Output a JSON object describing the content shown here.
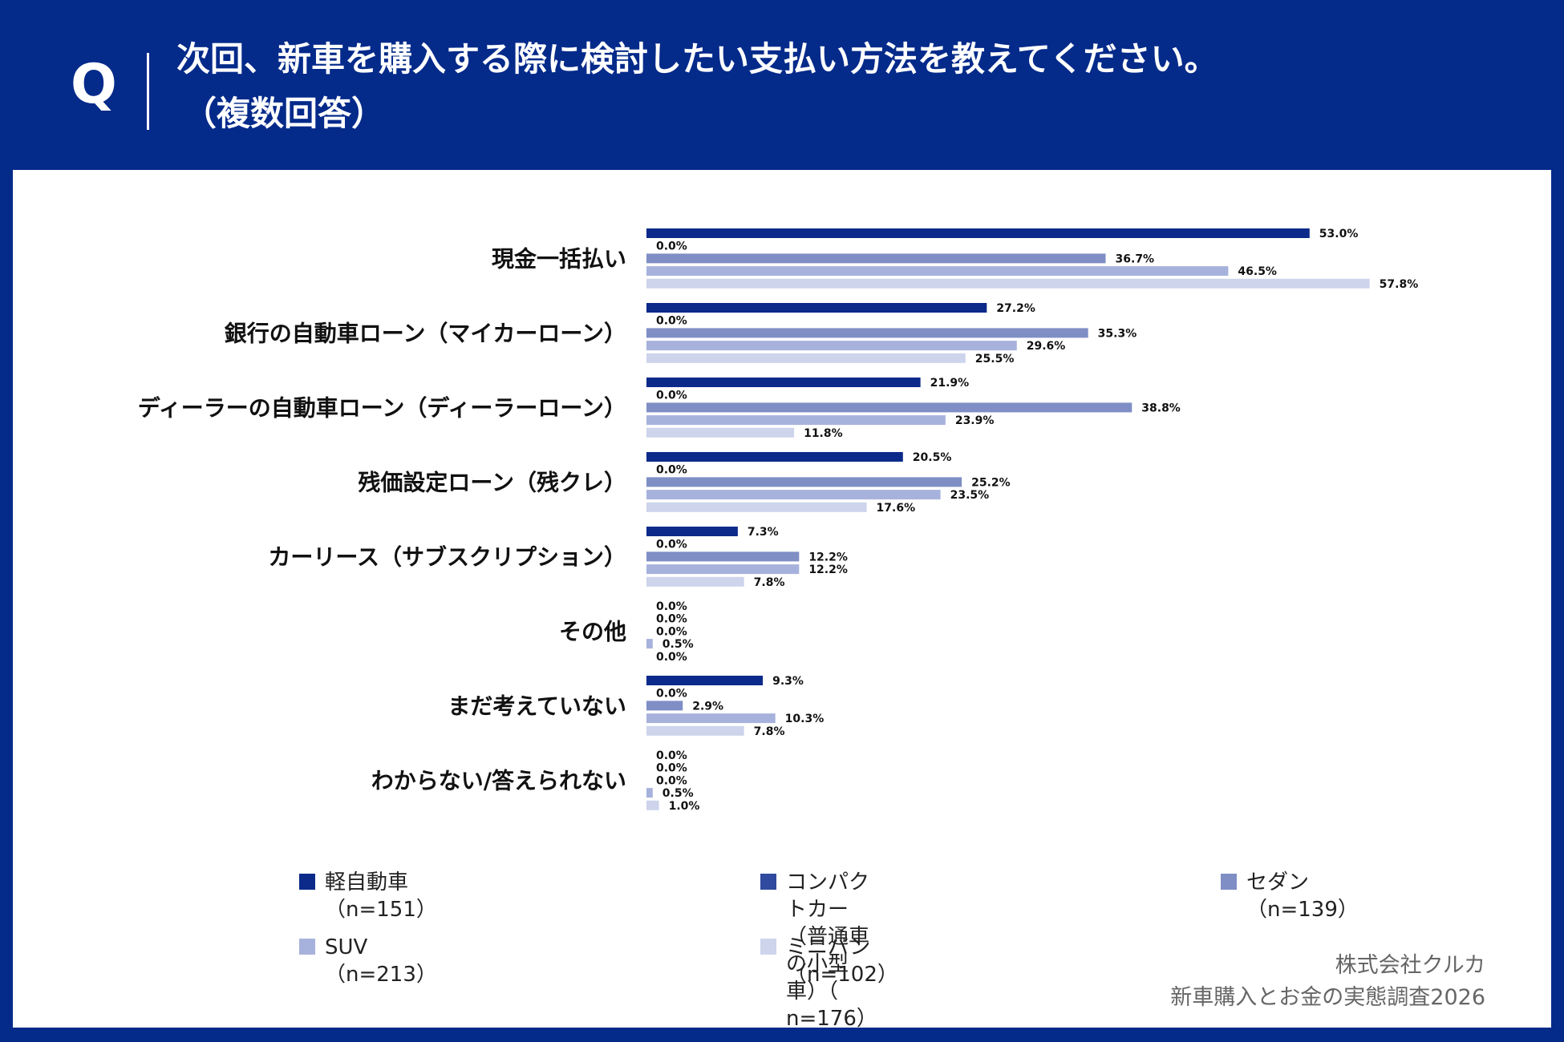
{
  "header": {
    "q_mark": "Q",
    "question_line1": "次回、新車を購入する際に検討したい支払い方法を教えてください。",
    "question_line2": "（複数回答）"
  },
  "chart_data": {
    "type": "bar",
    "orientation": "horizontal",
    "title": "",
    "xlabel": "",
    "ylabel": "",
    "value_format": "{v}%",
    "grid": false,
    "legend_position": "bottom",
    "categories": [
      "現金一括払い",
      "銀行の自動車ローン（マイカーローン）",
      "ディーラーの自動車ローン（ディーラーローン）",
      "残価設定ローン（残クレ）",
      "カーリース（サブスクリプション）",
      "その他",
      "まだ考えていない",
      "わからない/答えられない"
    ],
    "series": [
      {
        "name": "軽自動車（n=151）",
        "color": "#0b2a8a",
        "values": [
          53.0,
          27.2,
          21.9,
          20.5,
          7.3,
          0.0,
          9.3,
          0.0
        ]
      },
      {
        "name": "コンパクトカー（普通車の小型車）（ n=176）",
        "color": "#2f4a9e",
        "values": [
          0.0,
          0.0,
          0.0,
          0.0,
          0.0,
          0.0,
          0.0,
          0.0
        ]
      },
      {
        "name": "セダン（n=139）",
        "color": "#7f8ec5",
        "values": [
          36.7,
          35.3,
          38.8,
          25.2,
          12.2,
          0.0,
          2.9,
          0.0
        ]
      },
      {
        "name": "SUV（n=213）",
        "color": "#a7b2dc",
        "values": [
          46.5,
          29.6,
          23.9,
          23.5,
          12.2,
          0.5,
          10.3,
          0.5
        ]
      },
      {
        "name": "ミニバン（n=102）",
        "color": "#cdd4ec",
        "values": [
          57.8,
          25.5,
          11.8,
          17.6,
          7.8,
          0.0,
          7.8,
          1.0
        ]
      }
    ]
  },
  "legend": {
    "items": [
      {
        "line1": "軽自動車（n=151）",
        "line2": ""
      },
      {
        "line1": "コンパクトカー（普通車の小型車）（",
        "line2": "n=176）"
      },
      {
        "line1": "セダン（n=139）",
        "line2": ""
      },
      {
        "line1": "SUV（n=213）",
        "line2": ""
      },
      {
        "line1": "ミニバン（n=102）",
        "line2": ""
      }
    ]
  },
  "source": {
    "company": "株式会社クルカ",
    "survey": "新車購入とお金の実態調査2026"
  }
}
